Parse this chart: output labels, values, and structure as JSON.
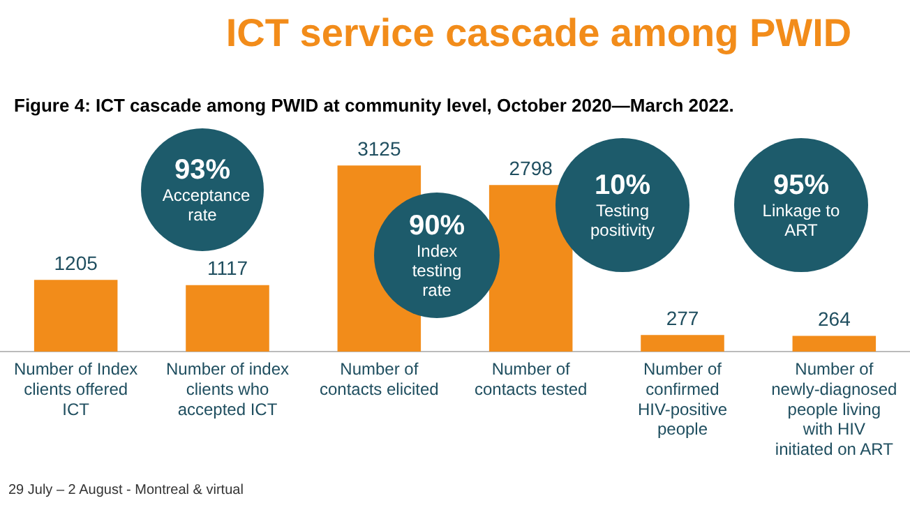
{
  "chart_data": {
    "type": "bar",
    "title": "ICT service cascade among PWID",
    "subtitle": "Figure 4: ICT cascade among PWID at community level, October 2020—March 2022.",
    "categories": [
      "Number of Index clients offered ICT",
      "Number of index clients who accepted ICT",
      "Number of contacts elicited",
      "Number of contacts tested",
      "Number of confirmed HIV-positive people",
      "Number of newly-diagnosed people living with HIV initiated on ART"
    ],
    "values": [
      1205,
      1117,
      3125,
      2798,
      277,
      264
    ],
    "color": "#f28c1a",
    "data_labels": true,
    "grid": false,
    "legend": false,
    "annotations": [
      "93% Acceptance rate",
      "90% Index testing rate",
      "10% Testing positivity",
      "95% Linkage to ART",
      "29 July – 2 August - Montreal & virtual"
    ]
  }
}
